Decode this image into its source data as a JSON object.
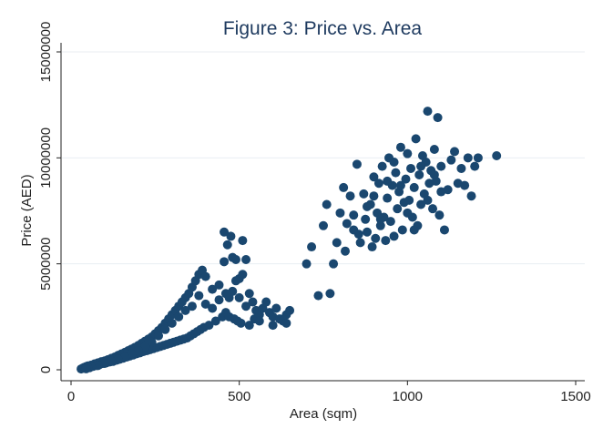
{
  "chart_data": {
    "type": "scatter",
    "title": "Figure 3: Price vs. Area",
    "xlabel": "Area (sqm)",
    "ylabel": "Price (AED)",
    "xlim": [
      0,
      1500
    ],
    "ylim": [
      0,
      15000000
    ],
    "x_ticks": [
      0,
      500,
      1000,
      1500
    ],
    "x_tick_labels": [
      "0",
      "500",
      "1000",
      "1500"
    ],
    "y_ticks": [
      0,
      5000000,
      10000000,
      15000000
    ],
    "y_tick_labels": [
      "0",
      "5000000",
      "10000000",
      "15000000"
    ],
    "grid": "horizontal",
    "marker_color": "#1a476f",
    "series": [
      {
        "points": [
          [
            30,
            40000
          ],
          [
            35,
            80000
          ],
          [
            40,
            120000
          ],
          [
            42,
            60000
          ],
          [
            45,
            150000
          ],
          [
            50,
            180000
          ],
          [
            55,
            100000
          ],
          [
            60,
            220000
          ],
          [
            65,
            160000
          ],
          [
            70,
            280000
          ],
          [
            75,
            200000
          ],
          [
            80,
            330000
          ],
          [
            85,
            250000
          ],
          [
            90,
            380000
          ],
          [
            95,
            300000
          ],
          [
            100,
            420000
          ],
          [
            105,
            330000
          ],
          [
            110,
            480000
          ],
          [
            115,
            370000
          ],
          [
            120,
            540000
          ],
          [
            125,
            400000
          ],
          [
            130,
            600000
          ],
          [
            135,
            450000
          ],
          [
            140,
            680000
          ],
          [
            145,
            500000
          ],
          [
            150,
            750000
          ],
          [
            155,
            550000
          ],
          [
            160,
            820000
          ],
          [
            165,
            600000
          ],
          [
            170,
            900000
          ],
          [
            175,
            650000
          ],
          [
            180,
            980000
          ],
          [
            185,
            700000
          ],
          [
            190,
            1060000
          ],
          [
            195,
            760000
          ],
          [
            200,
            1150000
          ],
          [
            205,
            800000
          ],
          [
            210,
            1250000
          ],
          [
            215,
            860000
          ],
          [
            220,
            1350000
          ],
          [
            225,
            900000
          ],
          [
            230,
            1450000
          ],
          [
            235,
            950000
          ],
          [
            240,
            1550000
          ],
          [
            245,
            1000000
          ],
          [
            250,
            1700000
          ],
          [
            255,
            1050000
          ],
          [
            260,
            1850000
          ],
          [
            265,
            1100000
          ],
          [
            270,
            2000000
          ],
          [
            275,
            1150000
          ],
          [
            280,
            2200000
          ],
          [
            285,
            1200000
          ],
          [
            290,
            2400000
          ],
          [
            295,
            1250000
          ],
          [
            300,
            2600000
          ],
          [
            305,
            1300000
          ],
          [
            310,
            2800000
          ],
          [
            315,
            1350000
          ],
          [
            320,
            3000000
          ],
          [
            325,
            1400000
          ],
          [
            330,
            3200000
          ],
          [
            335,
            1450000
          ],
          [
            340,
            3400000
          ],
          [
            345,
            1500000
          ],
          [
            350,
            3600000
          ],
          [
            355,
            1600000
          ],
          [
            360,
            3900000
          ],
          [
            365,
            1700000
          ],
          [
            370,
            4200000
          ],
          [
            375,
            1800000
          ],
          [
            380,
            4500000
          ],
          [
            385,
            1900000
          ],
          [
            390,
            4700000
          ],
          [
            395,
            2000000
          ],
          [
            400,
            4400000
          ],
          [
            410,
            2100000
          ],
          [
            420,
            3800000
          ],
          [
            430,
            2300000
          ],
          [
            440,
            4000000
          ],
          [
            450,
            2500000
          ],
          [
            455,
            5100000
          ],
          [
            460,
            2700000
          ],
          [
            465,
            5900000
          ],
          [
            470,
            2500000
          ],
          [
            475,
            6300000
          ],
          [
            480,
            5300000
          ],
          [
            485,
            2400000
          ],
          [
            490,
            5200000
          ],
          [
            495,
            2300000
          ],
          [
            500,
            4300000
          ],
          [
            505,
            2200000
          ],
          [
            510,
            4500000
          ],
          [
            520,
            3000000
          ],
          [
            530,
            3600000
          ],
          [
            540,
            3200000
          ],
          [
            545,
            2400000
          ],
          [
            550,
            2800000
          ],
          [
            560,
            2600000
          ],
          [
            570,
            2900000
          ],
          [
            580,
            3200000
          ],
          [
            590,
            2700000
          ],
          [
            600,
            2500000
          ],
          [
            610,
            2900000
          ],
          [
            620,
            2400000
          ],
          [
            630,
            2300000
          ],
          [
            640,
            2600000
          ],
          [
            650,
            2800000
          ],
          [
            455,
            6500000
          ],
          [
            470,
            3400000
          ],
          [
            480,
            3700000
          ],
          [
            490,
            4200000
          ],
          [
            510,
            6100000
          ],
          [
            520,
            5200000
          ],
          [
            380,
            3500000
          ],
          [
            360,
            3000000
          ],
          [
            340,
            2800000
          ],
          [
            320,
            2500000
          ],
          [
            300,
            2200000
          ],
          [
            280,
            1900000
          ],
          [
            260,
            1600000
          ],
          [
            240,
            1300000
          ],
          [
            220,
            1100000
          ],
          [
            200,
            900000
          ],
          [
            180,
            750000
          ],
          [
            160,
            600000
          ],
          [
            140,
            500000
          ],
          [
            120,
            400000
          ],
          [
            100,
            300000
          ],
          [
            80,
            200000
          ],
          [
            60,
            150000
          ],
          [
            50,
            100000
          ],
          [
            45,
            50000
          ],
          [
            400,
            3100000
          ],
          [
            420,
            2900000
          ],
          [
            440,
            3300000
          ],
          [
            460,
            3600000
          ],
          [
            500,
            3400000
          ],
          [
            530,
            2100000
          ],
          [
            560,
            2300000
          ],
          [
            600,
            2100000
          ],
          [
            640,
            2200000
          ],
          [
            700,
            5000000
          ],
          [
            715,
            5800000
          ],
          [
            735,
            3500000
          ],
          [
            750,
            6800000
          ],
          [
            760,
            7800000
          ],
          [
            770,
            3600000
          ],
          [
            780,
            5000000
          ],
          [
            790,
            6000000
          ],
          [
            800,
            7400000
          ],
          [
            810,
            8600000
          ],
          [
            815,
            5600000
          ],
          [
            820,
            6900000
          ],
          [
            830,
            8200000
          ],
          [
            840,
            7300000
          ],
          [
            850,
            9700000
          ],
          [
            855,
            6400000
          ],
          [
            860,
            6000000
          ],
          [
            870,
            8300000
          ],
          [
            875,
            7100000
          ],
          [
            880,
            6500000
          ],
          [
            890,
            7800000
          ],
          [
            895,
            5800000
          ],
          [
            900,
            9100000
          ],
          [
            905,
            6200000
          ],
          [
            910,
            7400000
          ],
          [
            915,
            8800000
          ],
          [
            920,
            6800000
          ],
          [
            925,
            9600000
          ],
          [
            930,
            7200000
          ],
          [
            935,
            6100000
          ],
          [
            940,
            8100000
          ],
          [
            945,
            10000000
          ],
          [
            950,
            7000000
          ],
          [
            955,
            8700000
          ],
          [
            960,
            6300000
          ],
          [
            965,
            9300000
          ],
          [
            970,
            7600000
          ],
          [
            975,
            8400000
          ],
          [
            980,
            10500000
          ],
          [
            985,
            6600000
          ],
          [
            990,
            7900000
          ],
          [
            995,
            9000000
          ],
          [
            1000,
            10200000
          ],
          [
            1005,
            8000000
          ],
          [
            1010,
            9500000
          ],
          [
            1015,
            7200000
          ],
          [
            1020,
            8600000
          ],
          [
            1025,
            10900000
          ],
          [
            1030,
            6800000
          ],
          [
            1035,
            9200000
          ],
          [
            1040,
            7800000
          ],
          [
            1045,
            10100000
          ],
          [
            1050,
            8300000
          ],
          [
            1055,
            9800000
          ],
          [
            1060,
            12200000
          ],
          [
            1065,
            8800000
          ],
          [
            1070,
            9400000
          ],
          [
            1075,
            7600000
          ],
          [
            1080,
            10400000
          ],
          [
            1085,
            8900000
          ],
          [
            1090,
            11900000
          ],
          [
            1095,
            7300000
          ],
          [
            1100,
            9600000
          ],
          [
            1110,
            6600000
          ],
          [
            1120,
            8500000
          ],
          [
            1130,
            9900000
          ],
          [
            1140,
            10300000
          ],
          [
            1150,
            8800000
          ],
          [
            1160,
            9500000
          ],
          [
            1170,
            8700000
          ],
          [
            1180,
            10000000
          ],
          [
            1190,
            8200000
          ],
          [
            1200,
            9600000
          ],
          [
            1210,
            10000000
          ],
          [
            1265,
            10100000
          ],
          [
            840,
            6600000
          ],
          [
            880,
            7700000
          ],
          [
            900,
            8200000
          ],
          [
            920,
            7100000
          ],
          [
            940,
            8900000
          ],
          [
            960,
            9800000
          ],
          [
            980,
            8700000
          ],
          [
            1000,
            7400000
          ],
          [
            1020,
            6600000
          ],
          [
            1040,
            9600000
          ],
          [
            1060,
            8000000
          ],
          [
            1080,
            9200000
          ],
          [
            1100,
            8400000
          ]
        ]
      }
    ]
  }
}
